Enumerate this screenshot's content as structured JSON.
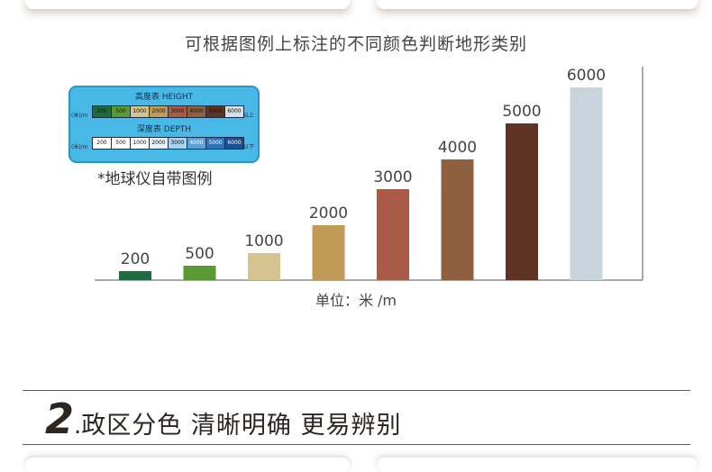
{
  "title": "可根据图例上标注的不同颜色判断地形类别",
  "legend": {
    "height_heading": "高度表 HEIGHT",
    "depth_heading": "深度表 DEPTH",
    "unit": "(米)/m",
    "height_values": [
      "200",
      "500",
      "1000",
      "2000",
      "3000",
      "4000",
      "5000",
      "6000"
    ],
    "height_colors": [
      "#1e6b3e",
      "#5a9a34",
      "#d6c490",
      "#c29a58",
      "#a85c48",
      "#8e6040",
      "#5e3324",
      "#d8dfe4"
    ],
    "height_suffix": "以上",
    "depth_values": [
      "200",
      "500",
      "1000",
      "2000",
      "3000",
      "4000",
      "5000",
      "6000"
    ],
    "depth_colors": [
      "#ffffff",
      "#ffffff",
      "#ffffff",
      "#e8f2fa",
      "#a6d4ee",
      "#5aa3d9",
      "#2e74b8",
      "#1c4f8f"
    ],
    "depth_suffix": "以下",
    "caption": "*地球仪自带图例"
  },
  "chart_data": {
    "type": "bar",
    "categories": [
      "200",
      "500",
      "1000",
      "2000",
      "3000",
      "4000",
      "5000",
      "6000"
    ],
    "values": [
      200,
      500,
      1000,
      2000,
      3000,
      4000,
      5000,
      6000
    ],
    "data_labels": [
      "200",
      "500",
      "1000",
      "2000",
      "3000",
      "4000",
      "5000",
      "6000"
    ],
    "colors": [
      "#1e6b3e",
      "#5a9a34",
      "#d6c490",
      "#c29a58",
      "#a85c48",
      "#8e6040",
      "#5e3324",
      "#c9d5dc"
    ],
    "xlabel": "单位：米 /m",
    "ylabel": "",
    "grid": false,
    "note": "bar heights are non-linear in the figure; values as labeled"
  },
  "section": {
    "number": "2",
    "dot": ".",
    "text": "政区分色  清晰明确  更易辨别"
  }
}
